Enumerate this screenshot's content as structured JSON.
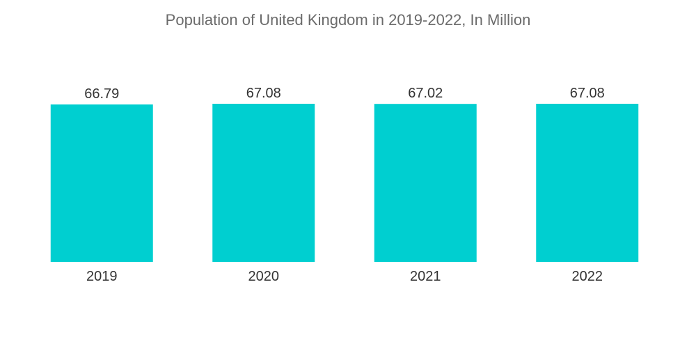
{
  "chart_data": {
    "type": "bar",
    "title": "Population of United Kingdom in 2019-2022, In Million",
    "categories": [
      "2019",
      "2020",
      "2021",
      "2022"
    ],
    "values": [
      66.79,
      67.08,
      67.02,
      67.08
    ],
    "data_labels": [
      "66.79",
      "67.08",
      "67.02",
      "67.08"
    ],
    "bar_color": "#00cfd0",
    "grid": false,
    "legend": "none"
  }
}
